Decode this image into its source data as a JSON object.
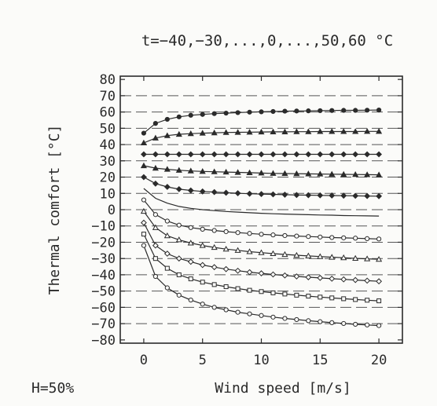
{
  "chart_data": {
    "type": "line",
    "title": "t=−40,−30,...,0,...,50,60 °C",
    "xlabel": "Wind speed [m/s]",
    "ylabel": "Thermal comfort [°C]",
    "footnote": "H=50%",
    "xlim": [
      -2,
      22
    ],
    "ylim": [
      -82,
      82
    ],
    "x_ticks": [
      0,
      5,
      10,
      15,
      20
    ],
    "y_ticks": [
      -80,
      -70,
      -60,
      -50,
      -40,
      -30,
      -20,
      -10,
      0,
      10,
      20,
      30,
      40,
      50,
      60,
      70,
      80
    ],
    "grid": "horizontal-dashed",
    "marker_style": {
      "60": "filled-circle",
      "50": "filled-triangle",
      "40": "filled-diamond",
      "30": "filled-triangle",
      "20": "filled-diamond",
      "10": "none",
      "0": "open-circle",
      "-10": "open-triangle",
      "-20": "open-diamond",
      "-30": "open-square",
      "-40": "open-circle"
    },
    "x": [
      0,
      1,
      2,
      3,
      4,
      5,
      6,
      7,
      8,
      9,
      10,
      11,
      12,
      13,
      14,
      15,
      16,
      17,
      18,
      19,
      20
    ],
    "series": [
      {
        "t": 60,
        "values": [
          47,
          53,
          55.5,
          57,
          58,
          58.5,
          59,
          59.3,
          59.6,
          59.9,
          60.1,
          60.3,
          60.5,
          60.6,
          60.7,
          60.8,
          60.9,
          61,
          61,
          61.1,
          61.2
        ]
      },
      {
        "t": 50,
        "values": [
          41,
          44,
          45.5,
          46.3,
          46.7,
          47,
          47.2,
          47.4,
          47.5,
          47.6,
          47.7,
          47.8,
          47.8,
          47.9,
          47.9,
          48,
          48,
          48,
          48,
          48.1,
          48.1
        ]
      },
      {
        "t": 40,
        "values": [
          34,
          34,
          34,
          34,
          34,
          34,
          34,
          34,
          34,
          34,
          34,
          34,
          34,
          34,
          34,
          34,
          34,
          34,
          34,
          34,
          34
        ]
      },
      {
        "t": 30,
        "values": [
          27,
          25.5,
          24.8,
          24.2,
          23.8,
          23.5,
          23.3,
          23.1,
          22.9,
          22.7,
          22.5,
          22.3,
          22.2,
          22.1,
          22,
          21.9,
          21.8,
          21.7,
          21.6,
          21.5,
          21.4
        ]
      },
      {
        "t": 20,
        "values": [
          20,
          16,
          14,
          12.6,
          11.8,
          11.2,
          10.8,
          10.4,
          10.1,
          9.8,
          9.6,
          9.4,
          9.2,
          9,
          8.9,
          8.8,
          8.7,
          8.6,
          8.5,
          8.4,
          8.3
        ]
      },
      {
        "t": 10,
        "values": [
          13,
          7,
          4,
          2,
          0.8,
          0,
          -0.6,
          -1.1,
          -1.5,
          -1.9,
          -2.2,
          -2.5,
          -2.7,
          -2.9,
          -3.1,
          -3.3,
          -3.4,
          -3.6,
          -3.7,
          -3.8,
          -3.9
        ]
      },
      {
        "t": 0,
        "values": [
          6,
          -3,
          -7,
          -9.5,
          -11,
          -12,
          -12.8,
          -13.5,
          -14.1,
          -14.6,
          -15.1,
          -15.5,
          -15.9,
          -16.2,
          -16.5,
          -16.8,
          -17.1,
          -17.3,
          -17.5,
          -17.8,
          -18
        ]
      },
      {
        "t": -10,
        "values": [
          -1,
          -11,
          -16,
          -18.5,
          -20.5,
          -22,
          -23.2,
          -24.2,
          -25,
          -25.8,
          -26.4,
          -27,
          -27.5,
          -28,
          -28.4,
          -28.8,
          -29.2,
          -29.5,
          -29.9,
          -30.2,
          -30.5
        ]
      },
      {
        "t": -20,
        "values": [
          -8,
          -22,
          -27,
          -30,
          -32,
          -34,
          -35.3,
          -36.5,
          -37.5,
          -38.4,
          -39.1,
          -39.8,
          -40.4,
          -41,
          -41.5,
          -41.9,
          -42.4,
          -42.8,
          -43.2,
          -43.6,
          -44
        ]
      },
      {
        "t": -30,
        "values": [
          -15,
          -30,
          -36,
          -40,
          -42.5,
          -44.5,
          -46,
          -47.3,
          -48.5,
          -49.5,
          -50.3,
          -51.1,
          -51.8,
          -52.5,
          -53.1,
          -53.7,
          -54.2,
          -54.7,
          -55.2,
          -55.6,
          -56
        ]
      },
      {
        "t": -40,
        "values": [
          -22,
          -41,
          -48,
          -52.5,
          -55.5,
          -58,
          -60,
          -61.5,
          -63,
          -64,
          -65,
          -66,
          -66.8,
          -67.5,
          -68.2,
          -68.8,
          -69.4,
          -69.9,
          -70.4,
          -70.8,
          -71.2
        ]
      }
    ]
  }
}
